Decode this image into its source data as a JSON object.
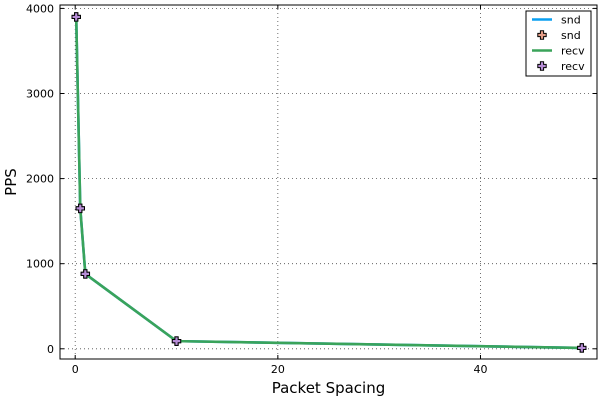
{
  "chart_data": {
    "type": "line",
    "xlabel": "Packet Spacing",
    "ylabel": "PPS",
    "xlim": [
      -1.5,
      51.5
    ],
    "ylim": [
      -120,
      4040
    ],
    "xticks": [
      0,
      20,
      40
    ],
    "yticks": [
      0,
      1000,
      2000,
      3000,
      4000
    ],
    "grid": true,
    "legend_position": "top-right",
    "series": [
      {
        "name": "snd",
        "style": "line",
        "color": "#0a9ff0",
        "x": [
          0.1,
          0.5,
          1,
          10,
          50
        ],
        "y": [
          3900,
          1650,
          880,
          90,
          10
        ]
      },
      {
        "name": "snd",
        "style": "marker",
        "color": "#e39c86",
        "x": [
          0.1,
          0.5,
          1,
          10,
          50
        ],
        "y": [
          3900,
          1650,
          880,
          90,
          10
        ]
      },
      {
        "name": "recv",
        "style": "line",
        "color": "#3aa35a",
        "x": [
          0.1,
          0.5,
          1,
          10,
          50
        ],
        "y": [
          3900,
          1650,
          880,
          90,
          10
        ]
      },
      {
        "name": "recv",
        "style": "marker",
        "color": "#b78dd6",
        "x": [
          0.1,
          0.5,
          1,
          10,
          50
        ],
        "y": [
          3900,
          1650,
          880,
          90,
          10
        ]
      }
    ]
  }
}
